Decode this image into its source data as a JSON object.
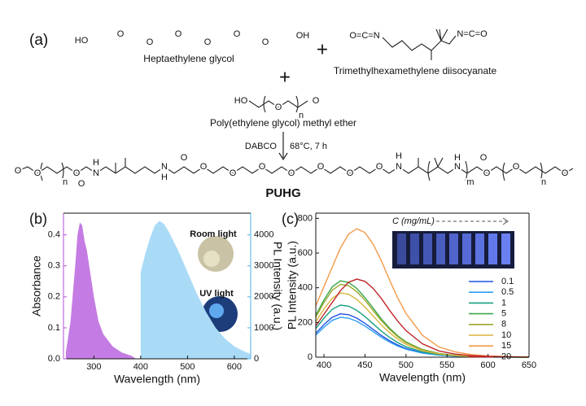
{
  "scheme": {
    "panel_label": "(a)",
    "reactant_1": {
      "name": "Heptaethylene glycol",
      "atoms": [
        "HO",
        "O",
        "O",
        "O",
        "O",
        "O",
        "O",
        "OH"
      ]
    },
    "reactant_2": {
      "name": "Trimethylhexamethylene diisocyanate",
      "atoms": [
        "O=C=N",
        "N=C=O"
      ]
    },
    "reactant_3": {
      "name": "Poly(ethylene glycol) methyl ether",
      "atoms": [
        "HO",
        "O",
        "n",
        "O"
      ]
    },
    "plus": [
      "+",
      "+"
    ],
    "catalyst": "DABCO",
    "conditions": "68°C, 7 h",
    "product": {
      "name": "PUHG",
      "atoms": [
        "O",
        "O",
        "n",
        "O",
        "O",
        "N",
        "H",
        "N",
        "H",
        "O",
        "O",
        "O",
        "O",
        "O",
        "O",
        "O",
        "O",
        "N",
        "H",
        "N",
        "H",
        "m",
        "O",
        "O",
        "O",
        "n",
        "O"
      ]
    }
  },
  "chart_data": [
    {
      "type": "area",
      "panel_label": "(b)",
      "xlabel": "Wavelength (nm)",
      "ylabel": "Absorbance",
      "y2label": "PL Intensity (a.u.)",
      "y_axis_color": "#b052d8",
      "y2_axis_color": "#4db3ee",
      "xlim": [
        235,
        635
      ],
      "xticks": [
        300,
        400,
        500,
        600
      ],
      "ylim": [
        0,
        0.47
      ],
      "yticks": [
        {
          "value": 0,
          "label": "0.0"
        },
        0.1,
        0.2,
        0.3,
        0.4
      ],
      "y2lim": [
        0,
        4700
      ],
      "y2ticks": [
        0,
        1000,
        2000,
        3000,
        4000
      ],
      "annotations": [
        "Room light",
        "UV light"
      ],
      "series": [
        {
          "color": "#c47ce4",
          "x": [
            240,
            250,
            260,
            265,
            270,
            275,
            280,
            285,
            290,
            300,
            310,
            320,
            340,
            360,
            380,
            390
          ],
          "values": [
            0.02,
            0.12,
            0.3,
            0.4,
            0.44,
            0.43,
            0.38,
            0.35,
            0.3,
            0.2,
            0.12,
            0.08,
            0.04,
            0.02,
            0.01,
            0
          ]
        },
        {
          "color": "#a9dbf7",
          "axis": "y2",
          "x": [
            400,
            410,
            420,
            430,
            440,
            450,
            460,
            480,
            500,
            520,
            540,
            560,
            580,
            600,
            620,
            635
          ],
          "values": [
            2800,
            3400,
            3900,
            4300,
            4450,
            4350,
            4100,
            3500,
            2800,
            2100,
            1500,
            1000,
            650,
            400,
            250,
            150
          ]
        }
      ]
    },
    {
      "type": "line",
      "panel_label": "(c)",
      "xlabel": "Wavelength (nm)",
      "ylabel": "PL Intensity (a.u.)",
      "annotation": "C (mg/mL)",
      "legend": "right",
      "xlim": [
        390,
        650
      ],
      "xticks": [
        400,
        450,
        500,
        550,
        600,
        650
      ],
      "ylim": [
        0,
        830
      ],
      "yticks": [
        0,
        200,
        400,
        600,
        800
      ],
      "x": [
        390,
        400,
        410,
        420,
        430,
        440,
        450,
        460,
        470,
        480,
        490,
        500,
        520,
        540,
        560,
        580,
        600,
        625,
        650
      ],
      "series": [
        {
          "name": "0.1",
          "color": "#2050e0",
          "values": [
            138,
            188,
            230,
            250,
            245,
            225,
            195,
            160,
            125,
            95,
            70,
            50,
            25,
            13,
            6,
            3,
            2,
            1,
            0
          ]
        },
        {
          "name": "0.5",
          "color": "#2a9df4",
          "values": [
            127,
            173,
            212,
            230,
            225,
            207,
            179,
            147,
            115,
            87,
            64,
            46,
            23,
            12,
            6,
            3,
            1,
            1,
            0
          ]
        },
        {
          "name": "1",
          "color": "#17a07e",
          "values": [
            165,
            225,
            276,
            300,
            294,
            270,
            234,
            192,
            150,
            114,
            84,
            60,
            30,
            15,
            8,
            4,
            2,
            1,
            0
          ]
        },
        {
          "name": "5",
          "color": "#3aa84a",
          "values": [
            242,
            330,
            405,
            440,
            431,
            396,
            343,
            282,
            220,
            167,
            123,
            88,
            44,
            22,
            11,
            5,
            3,
            1,
            0
          ]
        },
        {
          "name": "8",
          "color": "#9aa62a",
          "values": [
            231,
            315,
            386,
            420,
            412,
            378,
            328,
            269,
            210,
            160,
            118,
            84,
            42,
            21,
            11,
            5,
            3,
            1,
            0
          ]
        },
        {
          "name": "10",
          "color": "#d8b43a",
          "values": [
            204,
            278,
            340,
            370,
            363,
            333,
            289,
            237,
            185,
            141,
            104,
            74,
            37,
            19,
            9,
            4,
            2,
            1,
            0
          ]
        },
        {
          "name": "15",
          "color": "#f39a4a",
          "values": [
            296,
            407,
            518,
            629,
            710,
            740,
            718,
            651,
            555,
            444,
            340,
            252,
            126,
            59,
            30,
            15,
            7,
            3,
            1
          ]
        },
        {
          "name": "20",
          "color": "#c0262c",
          "values": [
            180,
            248,
            315,
            383,
            432,
            450,
            437,
            396,
            338,
            270,
            207,
            153,
            77,
            36,
            18,
            9,
            5,
            2,
            1
          ]
        }
      ]
    }
  ]
}
